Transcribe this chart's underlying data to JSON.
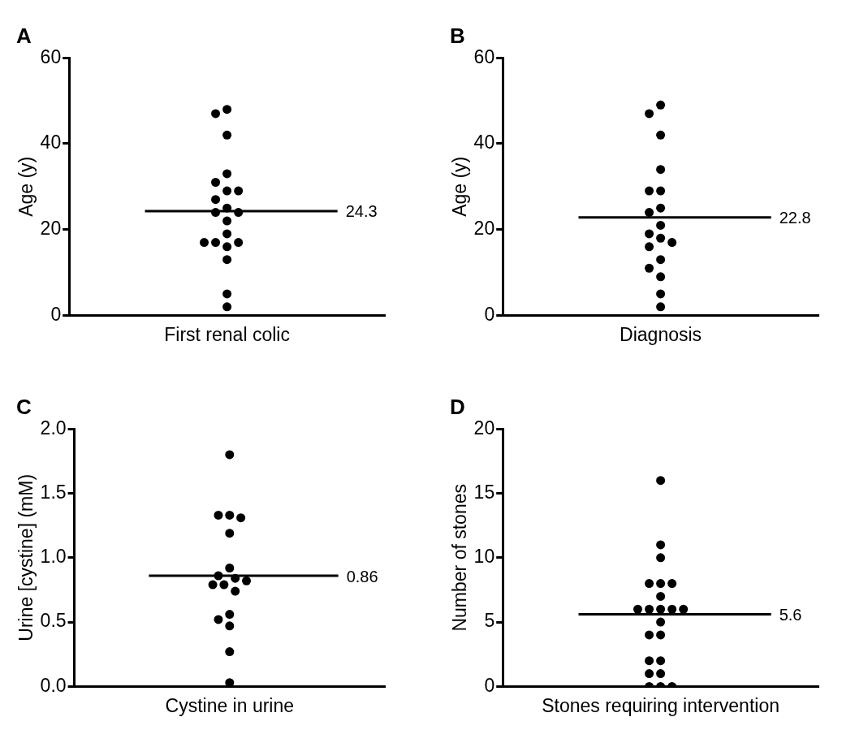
{
  "chart_data": [
    {
      "type": "scatter",
      "title": "A",
      "ylabel": "Age (y)",
      "categories": [
        "First renal colic"
      ],
      "ylim": [
        0,
        60
      ],
      "yticks": [
        0,
        20,
        40,
        60
      ],
      "grid": false,
      "legend": false,
      "marker": "circle",
      "series": [
        {
          "color": "#000000",
          "x": [
            "First renal colic",
            "First renal colic",
            "First renal colic",
            "First renal colic",
            "First renal colic",
            "First renal colic",
            "First renal colic",
            "First renal colic",
            "First renal colic",
            "First renal colic",
            "First renal colic",
            "First renal colic",
            "First renal colic",
            "First renal colic",
            "First renal colic",
            "First renal colic",
            "First renal colic",
            "First renal colic",
            "First renal colic",
            "First renal colic"
          ],
          "values": [
            48,
            47,
            42,
            33,
            31,
            29,
            29,
            27,
            25,
            24,
            24,
            22,
            19,
            17,
            17,
            17,
            16,
            13,
            5,
            2
          ]
        }
      ],
      "ref_lines": [
        {
          "axis": "y",
          "value": 24.3,
          "label": "24.3",
          "color": "#000000"
        }
      ]
    },
    {
      "type": "scatter",
      "title": "B",
      "ylabel": "Age (y)",
      "categories": [
        "Diagnosis"
      ],
      "ylim": [
        0,
        60
      ],
      "yticks": [
        0,
        20,
        40,
        60
      ],
      "grid": false,
      "legend": false,
      "marker": "circle",
      "series": [
        {
          "color": "#000000",
          "x": [
            "Diagnosis",
            "Diagnosis",
            "Diagnosis",
            "Diagnosis",
            "Diagnosis",
            "Diagnosis",
            "Diagnosis",
            "Diagnosis",
            "Diagnosis",
            "Diagnosis",
            "Diagnosis",
            "Diagnosis",
            "Diagnosis",
            "Diagnosis",
            "Diagnosis",
            "Diagnosis",
            "Diagnosis",
            "Diagnosis"
          ],
          "values": [
            49,
            47,
            42,
            34,
            29,
            29,
            25,
            24,
            21,
            19,
            18,
            17,
            16,
            13,
            11,
            9,
            5,
            2
          ]
        }
      ],
      "ref_lines": [
        {
          "axis": "y",
          "value": 22.8,
          "label": "22.8",
          "color": "#000000"
        }
      ]
    },
    {
      "type": "scatter",
      "title": "C",
      "ylabel": "Urine [cystine] (mM)",
      "categories": [
        "Cystine in urine"
      ],
      "ylim": [
        0,
        2
      ],
      "yticks": [
        {
          "value": 0,
          "label": "0.0"
        },
        {
          "value": 0.5,
          "label": "0.5"
        },
        {
          "value": 1,
          "label": "1.0"
        },
        {
          "value": 1.5,
          "label": "1.5"
        },
        {
          "value": 2,
          "label": "2.0"
        }
      ],
      "grid": false,
      "legend": false,
      "marker": "circle",
      "series": [
        {
          "color": "#000000",
          "x": [
            "Cystine in urine",
            "Cystine in urine",
            "Cystine in urine",
            "Cystine in urine",
            "Cystine in urine",
            "Cystine in urine",
            "Cystine in urine",
            "Cystine in urine",
            "Cystine in urine",
            "Cystine in urine",
            "Cystine in urine",
            "Cystine in urine",
            "Cystine in urine",
            "Cystine in urine",
            "Cystine in urine",
            "Cystine in urine",
            "Cystine in urine"
          ],
          "values": [
            1.8,
            1.33,
            1.33,
            1.31,
            1.19,
            0.92,
            0.86,
            0.84,
            0.82,
            0.79,
            0.79,
            0.74,
            0.56,
            0.52,
            0.47,
            0.27,
            0.03
          ]
        }
      ],
      "ref_lines": [
        {
          "axis": "y",
          "value": 0.86,
          "label": "0.86",
          "color": "#000000"
        }
      ]
    },
    {
      "type": "scatter",
      "title": "D",
      "ylabel": "Number of stones",
      "categories": [
        "Stones requiring intervention"
      ],
      "ylim": [
        0,
        20
      ],
      "yticks": [
        0,
        5,
        10,
        15,
        20
      ],
      "grid": false,
      "legend": false,
      "marker": "circle",
      "series": [
        {
          "color": "#000000",
          "x": [
            "Stones requiring intervention",
            "Stones requiring intervention",
            "Stones requiring intervention",
            "Stones requiring intervention",
            "Stones requiring intervention",
            "Stones requiring intervention",
            "Stones requiring intervention",
            "Stones requiring intervention",
            "Stones requiring intervention",
            "Stones requiring intervention",
            "Stones requiring intervention",
            "Stones requiring intervention",
            "Stones requiring intervention",
            "Stones requiring intervention",
            "Stones requiring intervention",
            "Stones requiring intervention",
            "Stones requiring intervention",
            "Stones requiring intervention",
            "Stones requiring intervention",
            "Stones requiring intervention",
            "Stones requiring intervention",
            "Stones requiring intervention"
          ],
          "values": [
            16,
            11,
            10,
            8,
            8,
            8,
            7,
            6,
            6,
            6,
            6,
            6,
            5,
            4,
            4,
            2,
            2,
            1,
            1,
            0,
            0,
            0
          ]
        }
      ],
      "ref_lines": [
        {
          "axis": "y",
          "value": 5.6,
          "label": "5.6",
          "color": "#000000"
        }
      ]
    }
  ]
}
